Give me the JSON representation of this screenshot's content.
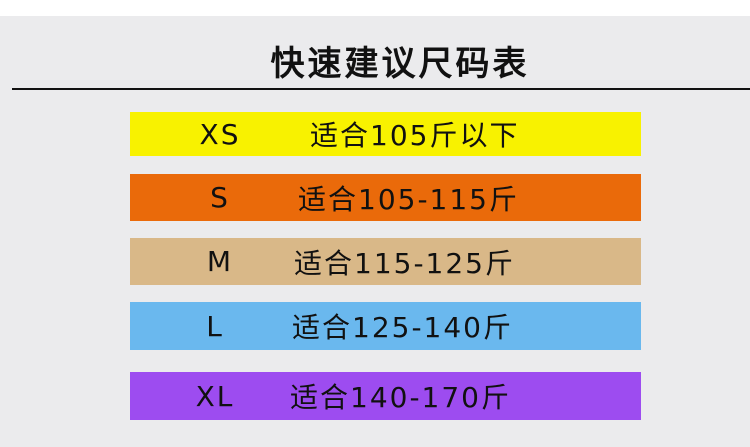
{
  "title": "快速建议尺码表",
  "rows": [
    {
      "size": "XS",
      "desc": "适合105斤以下",
      "color": "#f8f200"
    },
    {
      "size": "S",
      "desc": "适合105-115斤",
      "color": "#ea6a0a"
    },
    {
      "size": "M",
      "desc": "适合115-125斤",
      "color": "#d9b888"
    },
    {
      "size": "L",
      "desc": "适合125-140斤",
      "color": "#6ab8ee"
    },
    {
      "size": "XL",
      "desc": "适合140-170斤",
      "color": "#9d4cf0"
    }
  ]
}
